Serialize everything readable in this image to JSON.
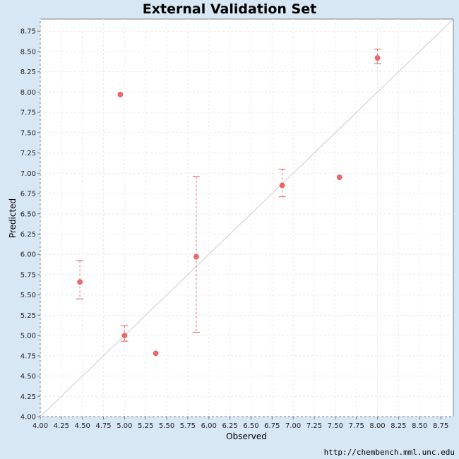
{
  "chart_data": {
    "type": "scatter",
    "title": "External Validation Set",
    "xlabel": "Observed",
    "ylabel": "Predicted",
    "xlim": [
      4.0,
      8.9
    ],
    "ylim": [
      4.0,
      8.9
    ],
    "x_ticks": [
      "4.00",
      "4.25",
      "4.50",
      "4.75",
      "5.00",
      "5.25",
      "5.50",
      "5.75",
      "6.00",
      "6.25",
      "6.50",
      "6.75",
      "7.00",
      "7.25",
      "7.50",
      "7.75",
      "8.00",
      "8.25",
      "8.50",
      "8.75"
    ],
    "y_ticks": [
      "4.00",
      "4.25",
      "4.50",
      "4.75",
      "5.00",
      "5.25",
      "5.50",
      "5.75",
      "6.00",
      "6.25",
      "6.50",
      "6.75",
      "7.00",
      "7.25",
      "7.50",
      "7.75",
      "8.00",
      "8.25",
      "8.50",
      "8.75"
    ],
    "grid": true,
    "reference_line": "y = x",
    "colors": {
      "point": "#ee6a6a",
      "error_bar": "#e87070",
      "reference_line": "#cfcfcf",
      "grid": "#ececec",
      "background": "#d8e7f4",
      "plot_background": "#ffffff"
    },
    "series": [
      {
        "points": [
          {
            "x": 4.47,
            "y": 5.66,
            "ymin": 5.45,
            "ymax": 5.92
          },
          {
            "x": 4.95,
            "y": 7.97
          },
          {
            "x": 5.0,
            "y": 5.0,
            "ymin": 4.93,
            "ymax": 5.12
          },
          {
            "x": 5.37,
            "y": 4.78
          },
          {
            "x": 5.85,
            "y": 5.97,
            "ymin": 5.04,
            "ymax": 6.96
          },
          {
            "x": 6.87,
            "y": 6.85,
            "ymin": 6.71,
            "ymax": 7.05
          },
          {
            "x": 7.55,
            "y": 6.95
          },
          {
            "x": 8.0,
            "y": 8.42,
            "ymin": 8.35,
            "ymax": 8.53
          }
        ]
      }
    ]
  },
  "footer": {
    "url": "http://chembench.mml.unc.edu"
  }
}
